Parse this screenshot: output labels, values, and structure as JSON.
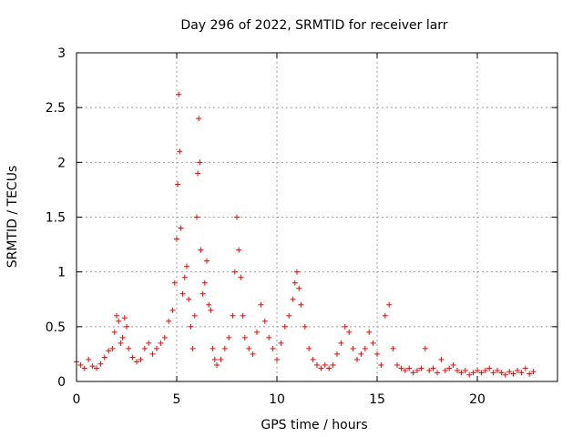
{
  "chart_data": {
    "type": "scatter",
    "title": "Day 296 of 2022, SRMTID for receiver larr",
    "xlabel": "GPS time / hours",
    "ylabel": "SRMTID / TECUs",
    "xlim": [
      0,
      24
    ],
    "ylim": [
      0,
      3
    ],
    "xticks": [
      0,
      5,
      10,
      15,
      20
    ],
    "xtick_labels": [
      "0",
      "5",
      "10",
      "15",
      "20"
    ],
    "yticks": [
      0,
      0.5,
      1,
      1.5,
      2,
      2.5,
      3
    ],
    "ytick_labels": [
      "0",
      "0.5",
      "1",
      "1.5",
      "2",
      "2.5",
      "3"
    ],
    "grid": true,
    "marker": "+",
    "color": "#ff0000",
    "series": [
      {
        "name": "SRMTID",
        "x": [
          0.0,
          0.2,
          0.4,
          0.6,
          0.8,
          1.0,
          1.2,
          1.4,
          1.6,
          1.8,
          1.9,
          2.0,
          2.1,
          2.2,
          2.3,
          2.4,
          2.5,
          2.6,
          2.8,
          3.0,
          3.2,
          3.4,
          3.6,
          3.8,
          4.0,
          4.2,
          4.4,
          4.6,
          4.8,
          4.9,
          5.0,
          5.05,
          5.1,
          5.15,
          5.2,
          5.3,
          5.4,
          5.5,
          5.6,
          5.7,
          5.8,
          5.9,
          6.0,
          6.05,
          6.1,
          6.15,
          6.2,
          6.3,
          6.4,
          6.5,
          6.6,
          6.7,
          6.8,
          6.9,
          7.0,
          7.2,
          7.4,
          7.6,
          7.8,
          7.9,
          8.0,
          8.1,
          8.2,
          8.3,
          8.4,
          8.6,
          8.8,
          9.0,
          9.2,
          9.4,
          9.6,
          9.8,
          10.0,
          10.2,
          10.4,
          10.6,
          10.8,
          10.9,
          11.0,
          11.1,
          11.2,
          11.4,
          11.6,
          11.8,
          12.0,
          12.2,
          12.4,
          12.6,
          12.8,
          13.0,
          13.2,
          13.4,
          13.6,
          13.8,
          14.0,
          14.2,
          14.4,
          14.6,
          14.8,
          15.0,
          15.2,
          15.4,
          15.6,
          15.8,
          16.0,
          16.2,
          16.4,
          16.6,
          16.8,
          17.0,
          17.2,
          17.4,
          17.6,
          17.8,
          18.0,
          18.2,
          18.4,
          18.6,
          18.8,
          19.0,
          19.2,
          19.4,
          19.6,
          19.8,
          20.0,
          20.2,
          20.4,
          20.6,
          20.8,
          21.0,
          21.2,
          21.4,
          21.6,
          21.8,
          22.0,
          22.2,
          22.4,
          22.6,
          22.8
        ],
        "y": [
          0.18,
          0.15,
          0.12,
          0.2,
          0.14,
          0.12,
          0.16,
          0.22,
          0.28,
          0.3,
          0.45,
          0.6,
          0.55,
          0.35,
          0.4,
          0.58,
          0.5,
          0.3,
          0.22,
          0.18,
          0.2,
          0.3,
          0.35,
          0.25,
          0.3,
          0.35,
          0.4,
          0.55,
          0.65,
          0.9,
          1.3,
          1.8,
          2.62,
          2.1,
          1.4,
          0.8,
          0.95,
          1.05,
          0.75,
          0.5,
          0.3,
          0.6,
          1.5,
          1.9,
          2.4,
          2.0,
          1.2,
          0.8,
          0.9,
          1.1,
          0.7,
          0.65,
          0.3,
          0.2,
          0.15,
          0.2,
          0.3,
          0.4,
          0.6,
          1.0,
          1.5,
          1.2,
          0.95,
          0.6,
          0.4,
          0.3,
          0.25,
          0.45,
          0.7,
          0.55,
          0.4,
          0.3,
          0.2,
          0.35,
          0.5,
          0.6,
          0.75,
          0.9,
          1.0,
          0.85,
          0.7,
          0.5,
          0.3,
          0.2,
          0.15,
          0.12,
          0.15,
          0.12,
          0.15,
          0.25,
          0.35,
          0.5,
          0.45,
          0.3,
          0.2,
          0.25,
          0.3,
          0.45,
          0.35,
          0.25,
          0.15,
          0.6,
          0.7,
          0.3,
          0.15,
          0.12,
          0.1,
          0.12,
          0.08,
          0.1,
          0.12,
          0.3,
          0.1,
          0.12,
          0.08,
          0.2,
          0.1,
          0.12,
          0.15,
          0.1,
          0.08,
          0.1,
          0.06,
          0.08,
          0.1,
          0.08,
          0.1,
          0.12,
          0.08,
          0.1,
          0.08,
          0.06,
          0.09,
          0.07,
          0.1,
          0.08,
          0.12,
          0.07,
          0.09
        ]
      }
    ]
  }
}
